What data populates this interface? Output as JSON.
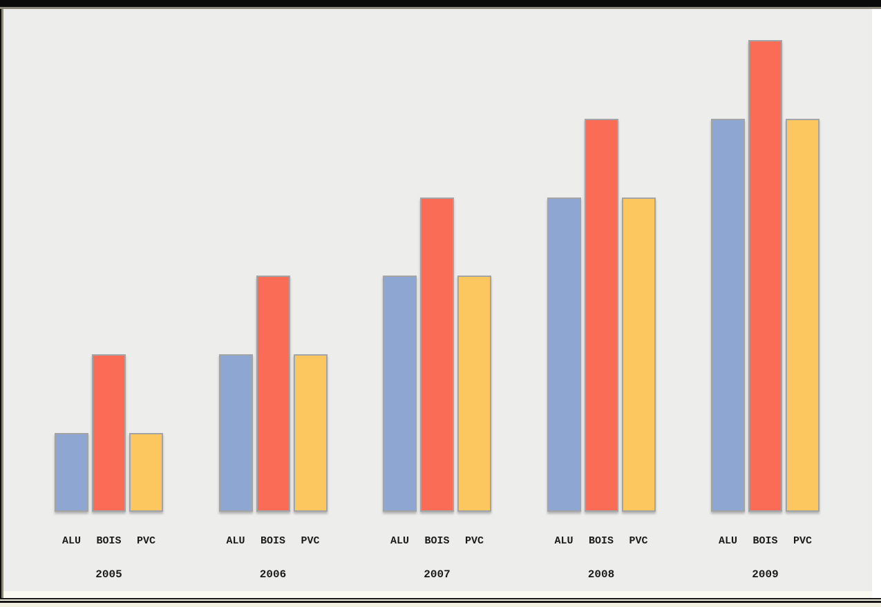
{
  "chart_data": {
    "type": "bar",
    "title": "",
    "categories": [
      "2005",
      "2006",
      "2007",
      "2008",
      "2009"
    ],
    "series": [
      {
        "name": "ALU",
        "color": "#8da7d2",
        "values": [
          1,
          2,
          3,
          4,
          5
        ]
      },
      {
        "name": "BOIS",
        "color": "#fb6c57",
        "values": [
          2,
          3,
          4,
          5,
          6
        ]
      },
      {
        "name": "PVC",
        "color": "#fcc75f",
        "values": [
          1,
          2,
          3,
          4,
          5
        ]
      }
    ],
    "bar_sub_labels": [
      "ALU",
      "BOIS",
      "PVC"
    ],
    "ylim": [
      0,
      6
    ],
    "axes_visible": false,
    "gridlines": false,
    "legend": "none",
    "plot_background": "#ededec",
    "bar_border_color": "#a2a4a6",
    "label_color": "#1b1b1b"
  },
  "frame": {
    "top_band_color": "#0a0a0a",
    "accent_color": "#868577",
    "bottom_strip_color": "#f2f0e0",
    "rule_color": "#161616"
  }
}
